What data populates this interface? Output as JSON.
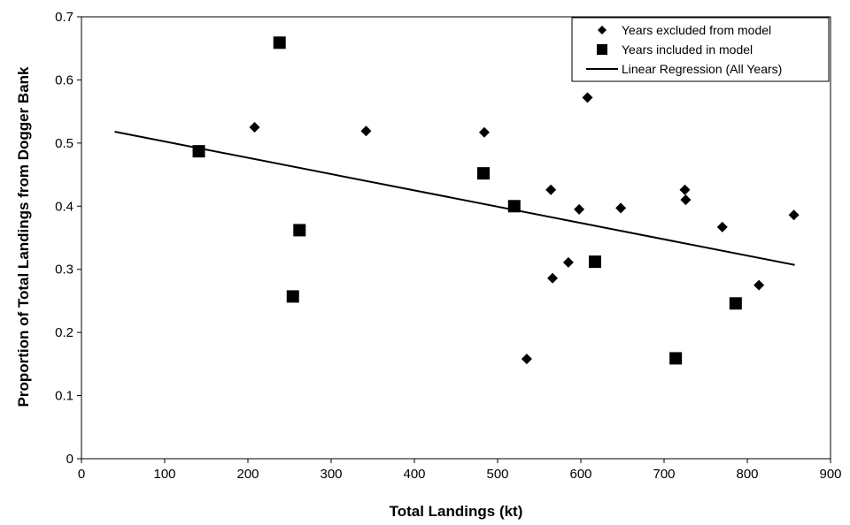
{
  "chart_data": {
    "type": "scatter",
    "title": "",
    "xlabel": "Total Landings (kt)",
    "ylabel": "Proportion of Total Landings from Dogger Bank",
    "xlim": [
      0,
      900
    ],
    "ylim": [
      0,
      0.7
    ],
    "x_ticks": [
      0,
      100,
      200,
      300,
      400,
      500,
      600,
      700,
      800,
      900
    ],
    "y_ticks": [
      0,
      0.1,
      0.2,
      0.3,
      0.4,
      0.5,
      0.6,
      0.7
    ],
    "grid": false,
    "legend_position": "top-right",
    "series": [
      {
        "name": "Years excluded from model",
        "marker": "diamond",
        "color": "#000000",
        "points": [
          [
            208,
            0.525
          ],
          [
            342,
            0.519
          ],
          [
            484,
            0.517
          ],
          [
            608,
            0.572
          ],
          [
            564,
            0.426
          ],
          [
            598,
            0.395
          ],
          [
            648,
            0.397
          ],
          [
            725,
            0.426
          ],
          [
            726,
            0.41
          ],
          [
            770,
            0.367
          ],
          [
            856,
            0.386
          ],
          [
            585,
            0.311
          ],
          [
            566,
            0.286
          ],
          [
            814,
            0.275
          ],
          [
            535,
            0.158
          ]
        ]
      },
      {
        "name": "Years included in model",
        "marker": "square",
        "color": "#000000",
        "points": [
          [
            238,
            0.659
          ],
          [
            141,
            0.487
          ],
          [
            483,
            0.452
          ],
          [
            520,
            0.4
          ],
          [
            262,
            0.362
          ],
          [
            617,
            0.312
          ],
          [
            254,
            0.257
          ],
          [
            786,
            0.246
          ],
          [
            714,
            0.159
          ]
        ]
      },
      {
        "name": "Linear Regression (All Years)",
        "marker": "line",
        "color": "#000000",
        "points": [
          [
            40,
            0.518
          ],
          [
            857,
            0.307
          ]
        ]
      }
    ]
  }
}
